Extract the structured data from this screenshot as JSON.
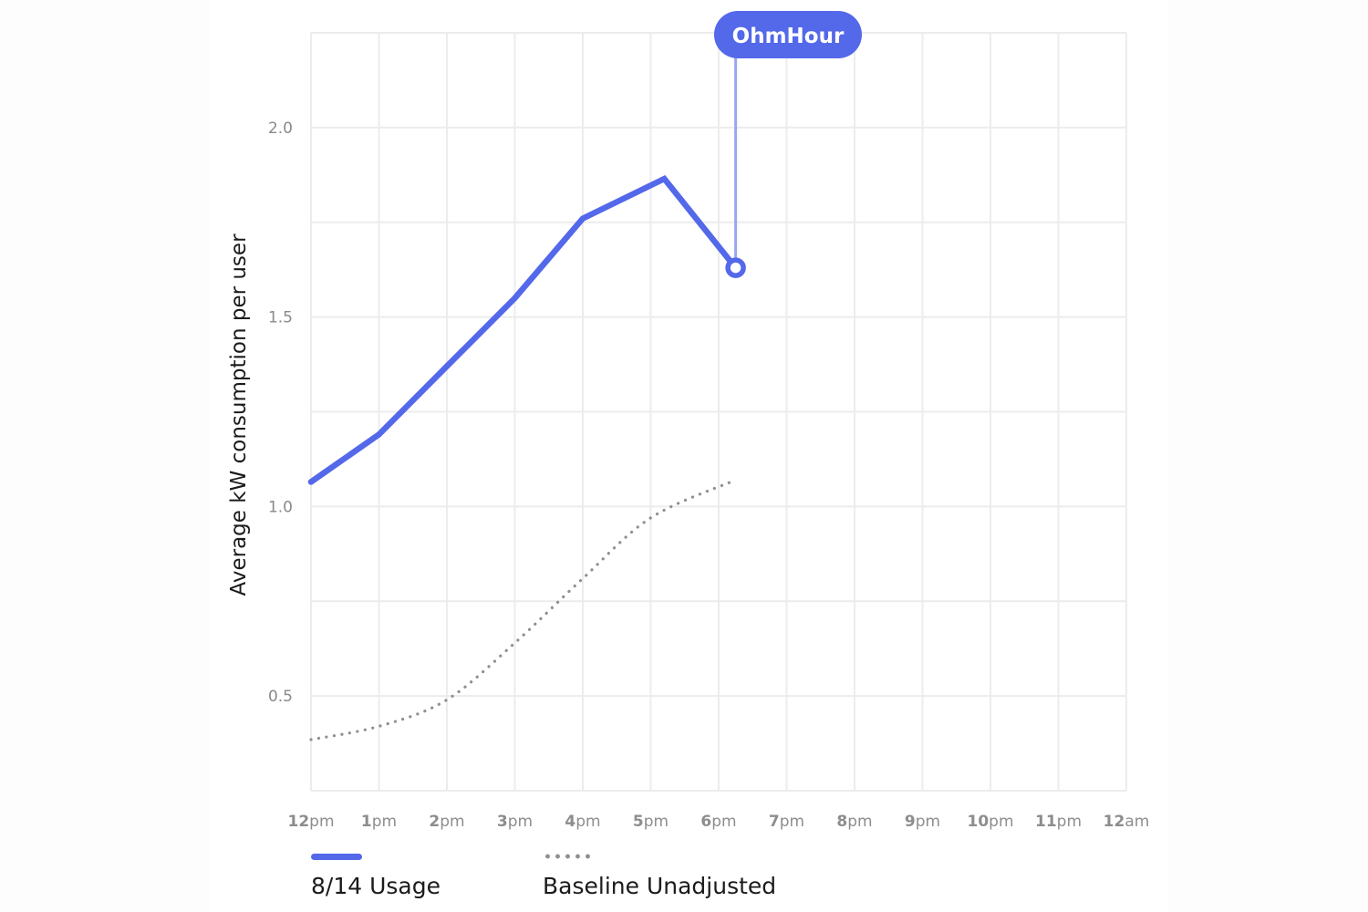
{
  "chart_data": {
    "type": "line",
    "title": "",
    "xlabel": "",
    "ylabel": "Average kW consumption per user",
    "x_ticks": [
      {
        "num": "12",
        "suffix": "pm"
      },
      {
        "num": "1",
        "suffix": "pm"
      },
      {
        "num": "2",
        "suffix": "pm"
      },
      {
        "num": "3",
        "suffix": "pm"
      },
      {
        "num": "4",
        "suffix": "pm"
      },
      {
        "num": "5",
        "suffix": "pm"
      },
      {
        "num": "6",
        "suffix": "pm"
      },
      {
        "num": "7",
        "suffix": "pm"
      },
      {
        "num": "8",
        "suffix": "pm"
      },
      {
        "num": "9",
        "suffix": "pm"
      },
      {
        "num": "10",
        "suffix": "pm"
      },
      {
        "num": "11",
        "suffix": "pm"
      },
      {
        "num": "12",
        "suffix": "am"
      }
    ],
    "x_range_hours": [
      12,
      24
    ],
    "y_ticks": [
      "0.5",
      "1.0",
      "1.5",
      "2.0"
    ],
    "y_tick_values": [
      0.5,
      1.0,
      1.5,
      2.0
    ],
    "ylim": [
      0.25,
      2.25
    ],
    "grid": true,
    "legend_position": "bottom-left",
    "series": [
      {
        "name": "8/14 Usage",
        "style": "solid",
        "color": "#5468ea",
        "x_hours": [
          12,
          13,
          14,
          15,
          16,
          17.2,
          18.25
        ],
        "values": [
          1.065,
          1.19,
          1.37,
          1.55,
          1.76,
          1.865,
          1.63
        ]
      },
      {
        "name": "Baseline Unadjusted",
        "style": "dotted",
        "color": "#8f8f8f",
        "x_hours": [
          12,
          13,
          14,
          15,
          16,
          17,
          18.25
        ],
        "values": [
          0.385,
          0.42,
          0.49,
          0.64,
          0.81,
          0.97,
          1.07
        ]
      }
    ],
    "annotations": [
      {
        "label": "OhmHour",
        "x_hours": 18.25,
        "value": 1.63,
        "color": "#5468ea"
      }
    ]
  },
  "legend": {
    "items": [
      {
        "label": "8/14 Usage"
      },
      {
        "label": "Baseline Unadjusted"
      }
    ]
  },
  "annotation": {
    "label": "OhmHour"
  }
}
